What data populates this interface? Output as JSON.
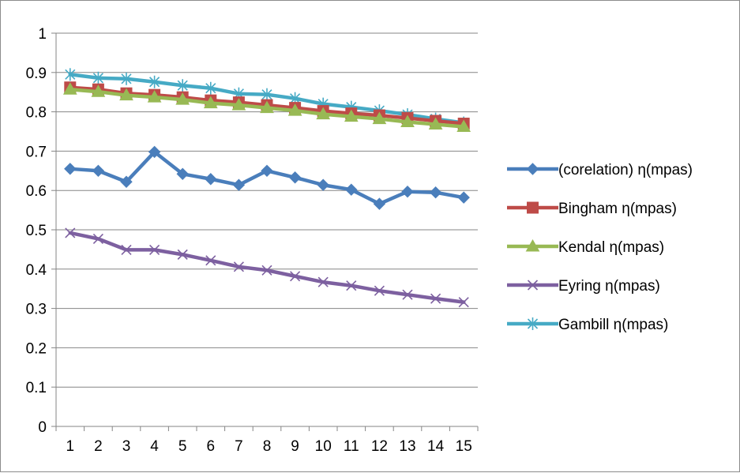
{
  "chart_data": {
    "type": "line",
    "x": [
      1,
      2,
      3,
      4,
      5,
      6,
      7,
      8,
      9,
      10,
      11,
      12,
      13,
      14,
      15
    ],
    "ylim": [
      0,
      1
    ],
    "yticks": [
      0,
      0.1,
      0.2,
      0.3,
      0.4,
      0.5,
      0.6,
      0.7,
      0.8,
      0.9,
      1
    ],
    "ytick_labels": [
      "0",
      "0.1",
      "0.2",
      "0.3",
      "0.4",
      "0.5",
      "0.6",
      "0.7",
      "0.8",
      "0.9",
      "1"
    ],
    "xtick_labels": [
      "1",
      "2",
      "3",
      "4",
      "5",
      "6",
      "7",
      "8",
      "9",
      "10",
      "11",
      "12",
      "13",
      "14",
      "15"
    ],
    "grid": "horizontal",
    "legend_position": "right",
    "series": [
      {
        "name": "(corelation) η(mpas)",
        "color": "#4a7ebb",
        "marker": "diamond",
        "values": [
          0.655,
          0.65,
          0.622,
          0.698,
          0.642,
          0.629,
          0.614,
          0.65,
          0.633,
          0.614,
          0.602,
          0.566,
          0.597,
          0.595,
          0.582
        ]
      },
      {
        "name": "Bingham η(mpas)",
        "color": "#be4b48",
        "marker": "square",
        "values": [
          0.862,
          0.857,
          0.847,
          0.843,
          0.837,
          0.829,
          0.824,
          0.817,
          0.81,
          0.802,
          0.796,
          0.791,
          0.784,
          0.777,
          0.77
        ]
      },
      {
        "name": "Kendal η(mpas)",
        "color": "#98b954",
        "marker": "triangle",
        "values": [
          0.857,
          0.851,
          0.842,
          0.837,
          0.831,
          0.822,
          0.817,
          0.81,
          0.803,
          0.794,
          0.788,
          0.782,
          0.774,
          0.768,
          0.762
        ]
      },
      {
        "name": "Eyring η(mpas)",
        "color": "#7d60a0",
        "marker": "x",
        "values": [
          0.492,
          0.477,
          0.449,
          0.449,
          0.437,
          0.422,
          0.406,
          0.397,
          0.382,
          0.367,
          0.358,
          0.345,
          0.335,
          0.325,
          0.316
        ]
      },
      {
        "name": "Gambill η(mpas)",
        "color": "#46aac5",
        "marker": "asterisk",
        "values": [
          0.895,
          0.886,
          0.884,
          0.876,
          0.867,
          0.86,
          0.846,
          0.844,
          0.834,
          0.82,
          0.812,
          0.803,
          0.793,
          0.782,
          0.772
        ]
      }
    ]
  }
}
